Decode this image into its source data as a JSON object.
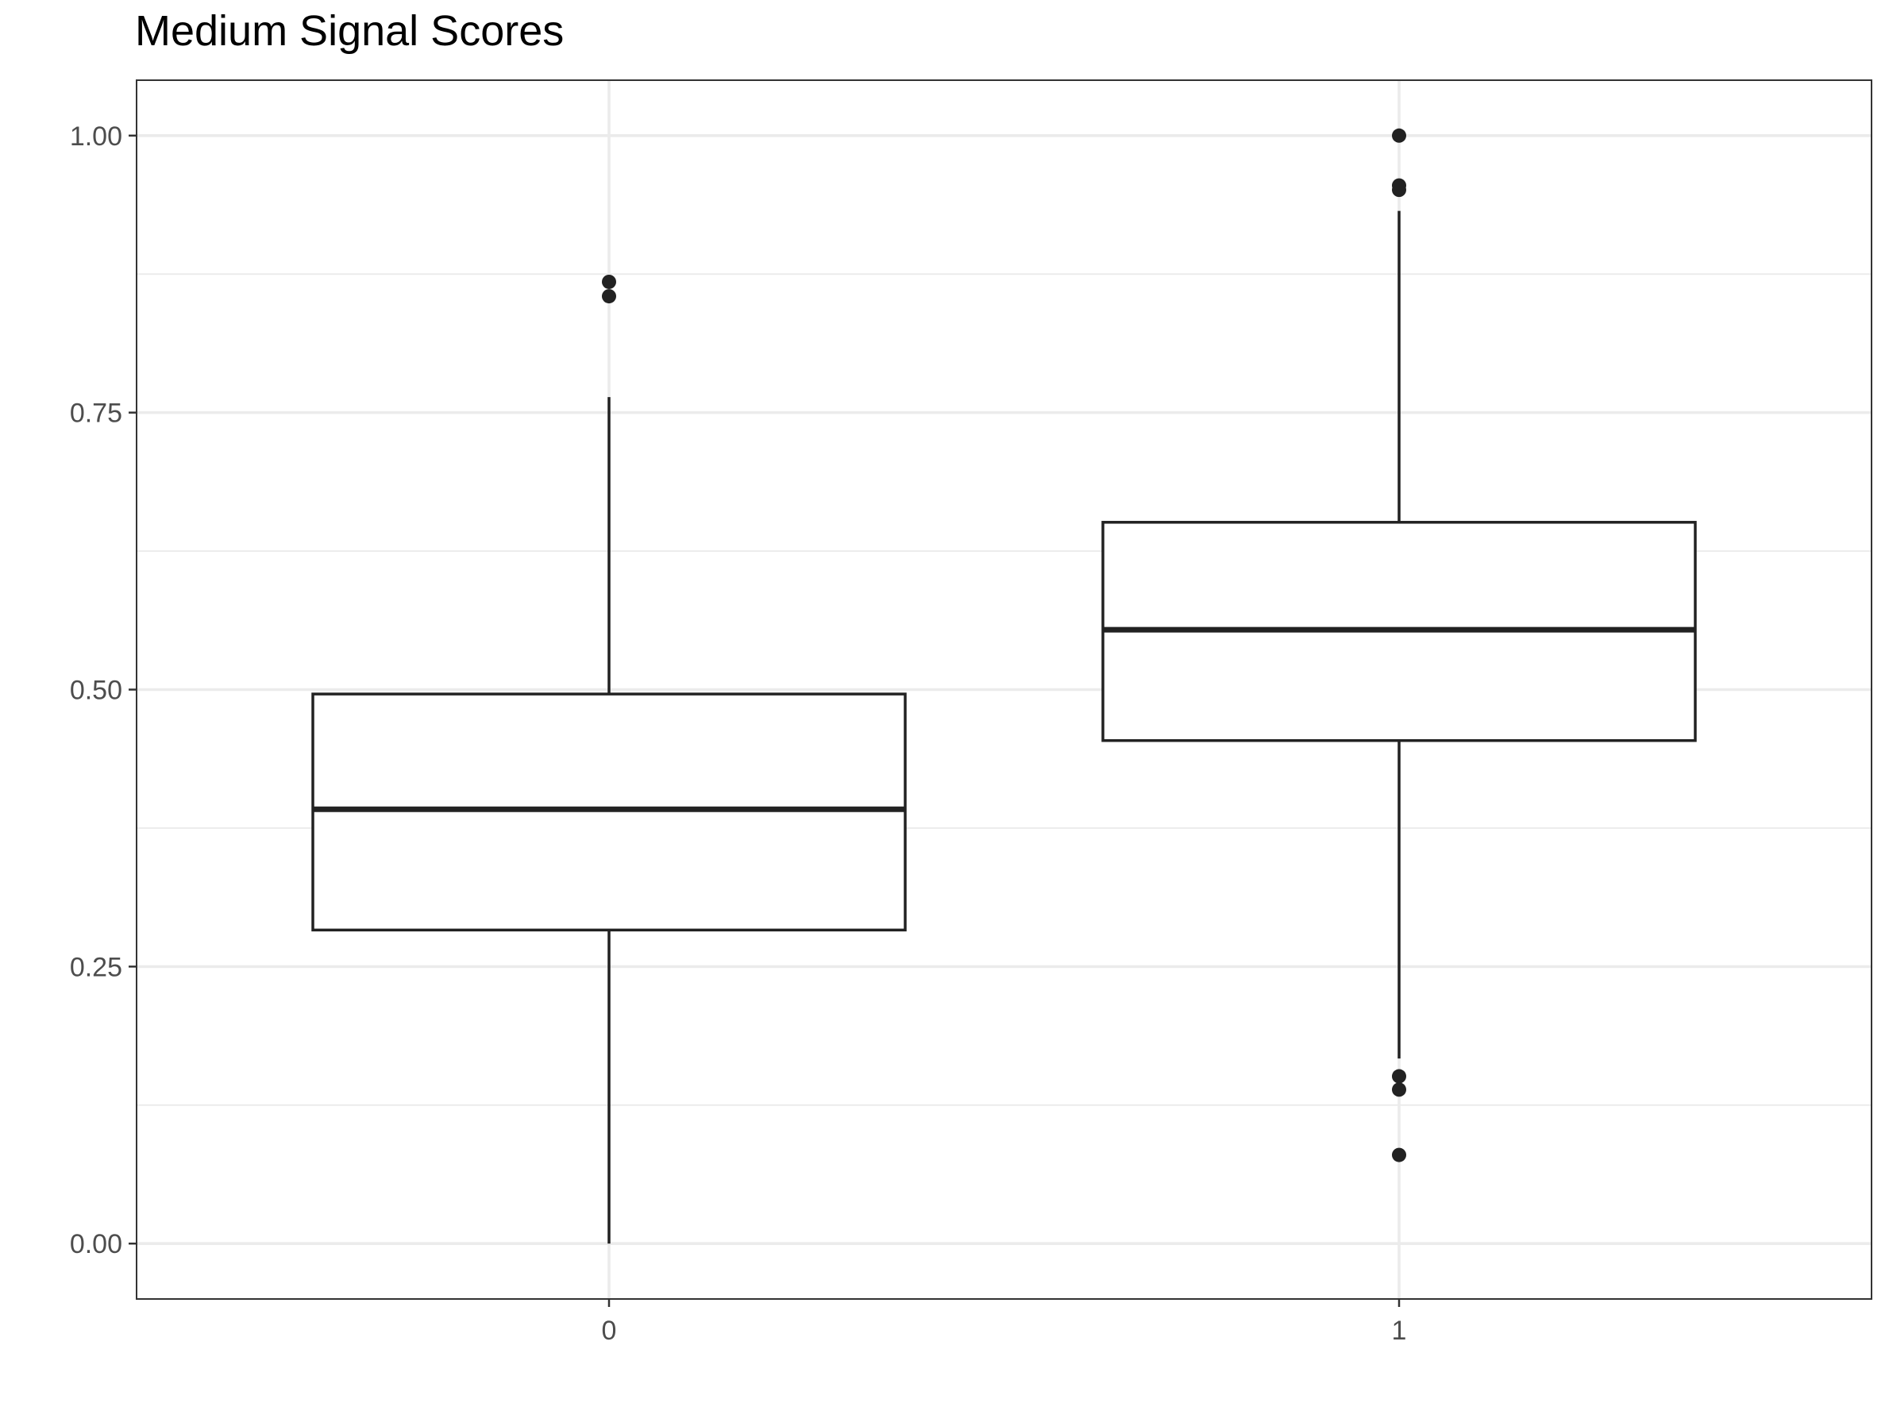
{
  "chart_data": {
    "type": "boxplot",
    "title": "Medium Signal Scores",
    "xlabel": "",
    "ylabel": "",
    "categories": [
      "0",
      "1"
    ],
    "ylim": [
      -0.05,
      1.05
    ],
    "y_ticks": [
      0.0,
      0.25,
      0.5,
      0.75,
      1.0
    ],
    "y_tick_labels": [
      "0.00",
      "0.25",
      "0.50",
      "0.75",
      "1.00"
    ],
    "y_minor_ticks": [
      0.125,
      0.375,
      0.625,
      0.875
    ],
    "grid": true,
    "legend": "none",
    "series": [
      {
        "category": "0",
        "whisker_low": 0.0,
        "q1": 0.283,
        "median": 0.392,
        "q3": 0.496,
        "whisker_high": 0.764,
        "outliers": [
          0.868,
          0.855
        ]
      },
      {
        "category": "1",
        "whisker_low": 0.167,
        "q1": 0.454,
        "median": 0.554,
        "q3": 0.651,
        "whisker_high": 0.932,
        "outliers": [
          1.0,
          0.955,
          0.951,
          0.151,
          0.139,
          0.08
        ]
      }
    ],
    "colors": {
      "box_stroke": "#222222",
      "box_fill": "#ffffff",
      "grid": "#ebebeb",
      "panel_border": "#333333",
      "tick_text": "#4d4d4d",
      "title_text": "#000000"
    }
  }
}
